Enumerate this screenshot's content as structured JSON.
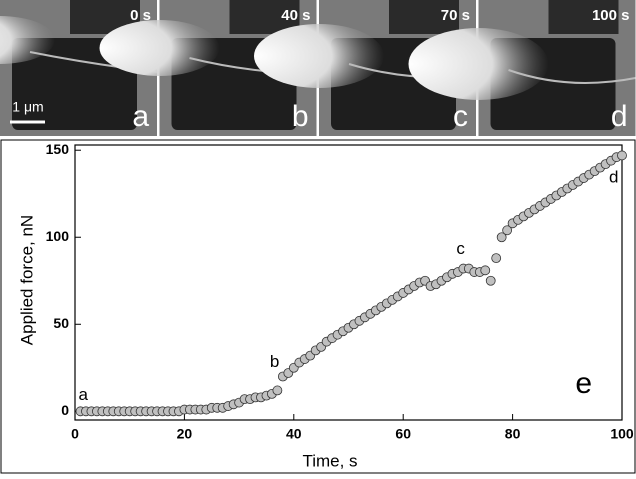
{
  "panels": [
    {
      "time": "0 s",
      "letter": "a"
    },
    {
      "time": "40 s",
      "letter": "b"
    },
    {
      "time": "70 s",
      "letter": "c"
    },
    {
      "time": "100 s",
      "letter": "d"
    }
  ],
  "scale_bar": "1 μm",
  "chart_data": {
    "type": "scatter",
    "xlabel": "Time, s",
    "ylabel": "Applied force, nN",
    "x": [
      1,
      2,
      3,
      4,
      5,
      6,
      7,
      8,
      9,
      10,
      11,
      12,
      13,
      14,
      15,
      16,
      17,
      18,
      19,
      20,
      21,
      22,
      23,
      24,
      25,
      26,
      27,
      28,
      29,
      30,
      31,
      32,
      33,
      34,
      35,
      36,
      37,
      38,
      39,
      40,
      41,
      42,
      43,
      44,
      45,
      46,
      47,
      48,
      49,
      50,
      51,
      52,
      53,
      54,
      55,
      56,
      57,
      58,
      59,
      60,
      61,
      62,
      63,
      64,
      65,
      66,
      67,
      68,
      69,
      70,
      71,
      72,
      73,
      74,
      75,
      76,
      77,
      78,
      79,
      80,
      81,
      82,
      83,
      84,
      85,
      86,
      87,
      88,
      89,
      90,
      91,
      92,
      93,
      94,
      95,
      96,
      97,
      98,
      99,
      100
    ],
    "values": [
      0,
      0,
      0,
      0,
      0,
      0,
      0,
      0,
      0,
      0,
      0,
      0,
      0,
      0,
      0,
      0,
      0,
      0,
      0,
      1,
      1,
      1,
      1,
      1,
      2,
      2,
      2,
      3,
      4,
      5,
      7,
      7,
      8,
      8,
      9,
      10,
      12,
      20,
      22,
      25,
      28,
      30,
      32,
      35,
      37,
      40,
      42,
      44,
      46,
      48,
      50,
      52,
      54,
      56,
      58,
      60,
      62,
      64,
      66,
      68,
      70,
      72,
      74,
      75,
      72,
      73,
      75,
      77,
      79,
      80,
      82,
      82,
      80,
      80,
      81,
      75,
      88,
      100,
      104,
      108,
      110,
      112,
      114,
      116,
      118,
      120,
      122,
      124,
      126,
      128,
      130,
      132,
      134,
      136,
      138,
      140,
      142,
      144,
      146,
      147
    ],
    "color": "#c0c0c0",
    "xlim": [
      0,
      100
    ],
    "ylim": [
      -5,
      153
    ],
    "xticks": [
      0,
      20,
      40,
      60,
      80,
      100
    ],
    "yticks": [
      0,
      50,
      100,
      150
    ],
    "annotations": [
      {
        "text": "a",
        "x": 1.5,
        "y": 9
      },
      {
        "text": "b",
        "x": 36.5,
        "y": 28
      },
      {
        "text": "c",
        "x": 70.5,
        "y": 93
      },
      {
        "text": "d",
        "x": 98.5,
        "y": 134
      },
      {
        "text": "e",
        "x": 93,
        "y": 15
      }
    ]
  }
}
